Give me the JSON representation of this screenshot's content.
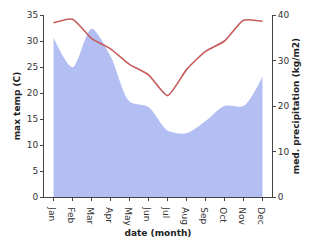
{
  "chart_data": {
    "type": "line",
    "x_label": "date (month)",
    "y_label": "max temp (C)",
    "y2_label": "med. precipitation (kg/m2)",
    "categories": [
      "Jan",
      "Feb",
      "Mar",
      "Apr",
      "May",
      "Jun",
      "Jul",
      "Aug",
      "Sep",
      "Oct",
      "Nov",
      "Dec"
    ],
    "series": [
      {
        "type": "area",
        "axis": "y2",
        "color": "#b3bff2",
        "values": [
          35,
          28.5,
          37,
          31,
          21,
          19.8,
          14.6,
          14,
          16.7,
          20,
          20,
          26.5
        ]
      },
      {
        "type": "line",
        "color": "#c65b5b",
        "values": [
          33.5,
          34.2,
          30.5,
          28.5,
          25.5,
          23.5,
          19.5,
          24.5,
          28,
          30,
          34,
          33.8
        ]
      }
    ],
    "ylim": [
      0,
      35
    ],
    "yticks": [
      0,
      5,
      10,
      15,
      20,
      25,
      30,
      35
    ],
    "y2lim": [
      0,
      40
    ],
    "y2ticks": [
      0,
      10,
      20,
      30,
      40
    ],
    "grid": false
  }
}
